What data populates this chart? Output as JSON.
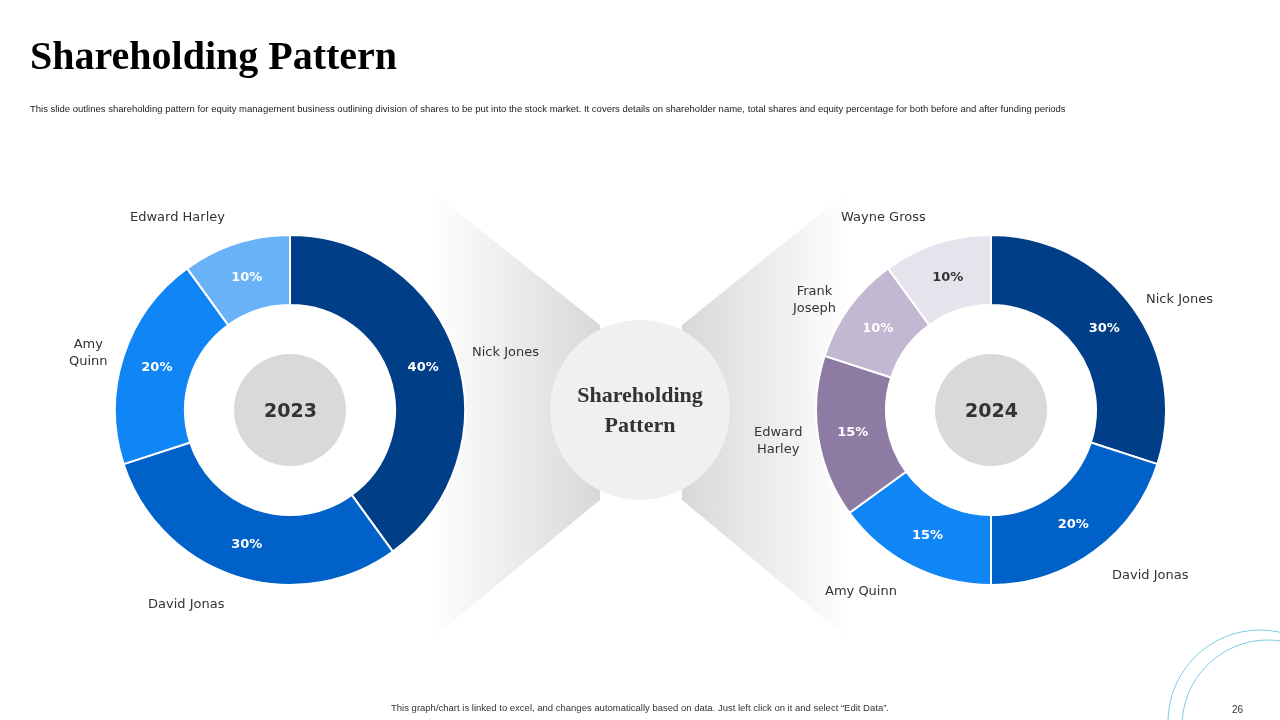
{
  "chart_data": [
    {
      "type": "other",
      "title": "Shareholding Pattern",
      "subtitle": "This slide outlines shareholding pattern for equity management business outlining division of shares to be put into the stock market. It covers details on shareholder name, total shares and equity percentage for both before and after funding periods",
      "annotations": [
        "Shareholding Pattern",
        "This graph/chart is linked to excel, and changes automatically based on data. Just left click on it and select “Edit Data”.",
        "26"
      ]
    },
    {
      "type": "donut",
      "title": "2023",
      "categories": [
        "Nick Jones",
        "David Jonas",
        "Amy Quinn",
        "Edward Harley"
      ],
      "values": [
        40,
        30,
        20,
        10
      ],
      "value_labels": [
        "40%",
        "30%",
        "20%",
        "10%"
      ],
      "colors": [
        "#003f87",
        "#0061c8",
        "#1085f5",
        "#6ab2f7"
      ]
    },
    {
      "type": "donut",
      "title": "2024",
      "categories": [
        "Nick Jones",
        "David Jonas",
        "Amy Quinn",
        "Edward Harley",
        "Frank Joseph",
        "Wayne Gross"
      ],
      "values": [
        30,
        20,
        15,
        15,
        10,
        10
      ],
      "value_labels": [
        "30%",
        "20%",
        "15%",
        "15%",
        "10%",
        "10%"
      ],
      "colors": [
        "#003f87",
        "#0061c8",
        "#1085f5",
        "#8e7ba3",
        "#c3b8d2",
        "#e6e3ec"
      ]
    }
  ]
}
